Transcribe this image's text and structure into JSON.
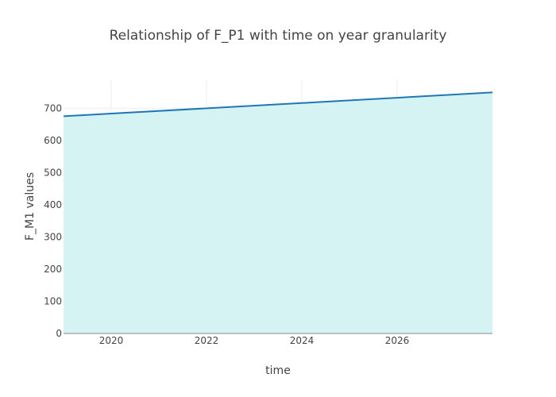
{
  "chart_data": {
    "type": "area",
    "title": "Relationship of F_P1 with time on year granularity",
    "xlabel": "time",
    "ylabel": "F_M1 values",
    "x": [
      "2019",
      "2028"
    ],
    "values": [
      675,
      749
    ],
    "xlim": [
      "2019",
      "2028"
    ],
    "ylim": [
      0,
      789.5
    ],
    "xticks": [
      2020,
      2022,
      2024,
      2026
    ],
    "yticks": [
      0,
      100,
      200,
      300,
      400,
      500,
      600,
      700
    ],
    "grid": true,
    "line_color": "#1f77b4",
    "fill_color": "#d4f3f2",
    "grid_color": "#eeeeee",
    "axis_line_color": "#888888"
  }
}
